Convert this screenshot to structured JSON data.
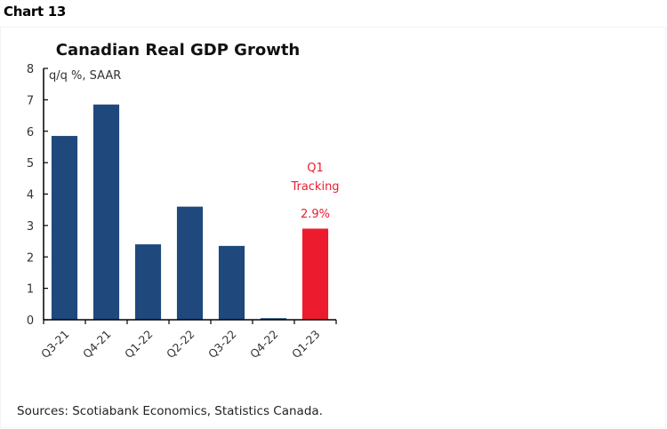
{
  "header": {
    "chart_number": "Chart 13"
  },
  "footer": {
    "source": "Sources: Scotiabank Economics, Statistics Canada."
  },
  "colors": {
    "history_bar": "#1F497D",
    "tracking_bar": "#EC1C2E",
    "axis": "#000000"
  },
  "chart_data": {
    "type": "bar",
    "title": "Canadian Real GDP Growth",
    "ylabel": "q/q %, SAAR",
    "xlabel": "",
    "categories": [
      "Q3-21",
      "Q4-21",
      "Q1-22",
      "Q2-22",
      "Q3-22",
      "Q4-22",
      "Q1-23"
    ],
    "values": [
      5.85,
      6.85,
      2.4,
      3.6,
      2.35,
      0.05,
      2.9
    ],
    "highlight_index": 6,
    "ylim": [
      0,
      8
    ],
    "yticks": [
      0,
      1,
      2,
      3,
      4,
      5,
      6,
      7,
      8
    ],
    "grid": false,
    "annotation": {
      "lines": [
        "Q1",
        "Tracking"
      ],
      "value_label": "2.9%"
    }
  }
}
